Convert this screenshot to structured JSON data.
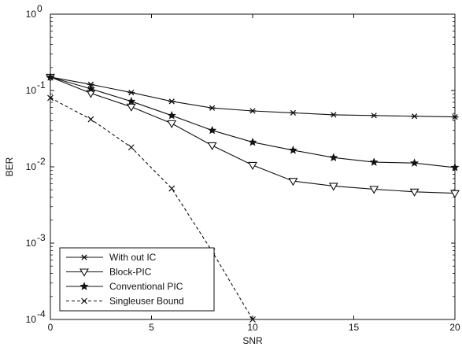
{
  "chart_data": {
    "type": "line",
    "title": "",
    "xlabel": "SNR",
    "ylabel": "BER",
    "xlim": [
      0,
      20
    ],
    "ylim": [
      0.0001,
      1
    ],
    "yscale": "log",
    "grid": false,
    "legend_position": "bottom-left",
    "x_ticks": [
      {
        "value": 0,
        "label": "0"
      },
      {
        "value": 5,
        "label": "5"
      },
      {
        "value": 10,
        "label": "10"
      },
      {
        "value": 15,
        "label": "15"
      },
      {
        "value": 20,
        "label": "20"
      }
    ],
    "y_ticks": [
      {
        "value": 1,
        "label": "10",
        "exp": "0"
      },
      {
        "value": 0.1,
        "label": "10",
        "exp": "-1"
      },
      {
        "value": 0.01,
        "label": "10",
        "exp": "-2"
      },
      {
        "value": 0.001,
        "label": "10",
        "exp": "-3"
      },
      {
        "value": 0.0001,
        "label": "10",
        "exp": "-4"
      }
    ],
    "series": [
      {
        "name": "With out IC",
        "marker": "asterisk",
        "line": "solid",
        "x": [
          0,
          2,
          4,
          6,
          8,
          10,
          12,
          14,
          16,
          18,
          20
        ],
        "y": [
          0.15,
          0.12,
          0.094,
          0.072,
          0.059,
          0.054,
          0.051,
          0.048,
          0.047,
          0.046,
          0.045
        ]
      },
      {
        "name": "Block-PIC",
        "marker": "triangle-down",
        "line": "solid",
        "x": [
          0,
          2,
          4,
          6,
          8,
          10,
          12,
          14,
          16,
          18,
          20
        ],
        "y": [
          0.15,
          0.092,
          0.061,
          0.037,
          0.019,
          0.0105,
          0.0065,
          0.0056,
          0.0051,
          0.0047,
          0.0045
        ]
      },
      {
        "name": "Conventional PIC",
        "marker": "star",
        "line": "solid",
        "x": [
          0,
          2,
          4,
          6,
          8,
          10,
          12,
          14,
          16,
          18,
          20
        ],
        "y": [
          0.15,
          0.105,
          0.072,
          0.047,
          0.03,
          0.021,
          0.0165,
          0.0132,
          0.0115,
          0.0112,
          0.0098
        ]
      },
      {
        "name": "Singleuser Bound",
        "marker": "x",
        "line": "dashed",
        "x": [
          0,
          2,
          4,
          6,
          8,
          10
        ],
        "y": [
          0.08,
          0.042,
          0.018,
          0.0052,
          0.00078,
          0.0001
        ]
      }
    ]
  }
}
